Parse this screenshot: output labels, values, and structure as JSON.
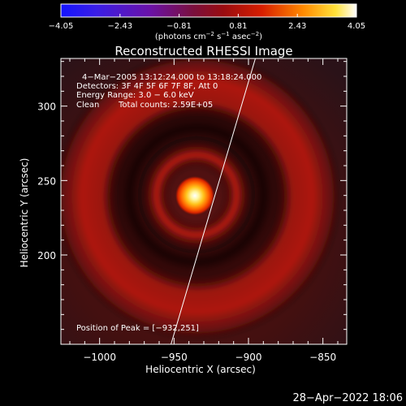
{
  "chart_data": {
    "type": "heatmap",
    "title": "Reconstructed RHESSI Image",
    "xlabel": "Heliocentric X (arcsec)",
    "ylabel": "Heliocentric Y (arcsec)",
    "xlim": [
      -1026,
      -834
    ],
    "ylim": [
      140,
      332
    ],
    "x_ticks": [
      -1000,
      -950,
      -900,
      -850
    ],
    "x_tick_labels": [
      "−1000",
      "−950",
      "−900",
      "−850"
    ],
    "y_ticks": [
      200,
      250,
      300
    ],
    "y_tick_labels": [
      "200",
      "250",
      "300"
    ],
    "colorbar": {
      "range": [
        -4.05,
        4.05
      ],
      "ticks": [
        -4.05,
        -2.43,
        -0.81,
        0.81,
        2.43,
        4.05
      ],
      "tick_labels": [
        "−4.05",
        "−2.43",
        "−0.81",
        "0.81",
        "2.43",
        "4.05"
      ],
      "units_prefix": "(photons cm",
      "units_exp1": "−2",
      "units_mid1": " s",
      "units_exp2": "−1",
      "units_mid2": " asec",
      "units_exp3": "−2",
      "units_suffix": ")"
    },
    "annotations": {
      "time_range": "4−Mar−2005 13:12:24.000 to 13:18:24.000",
      "detectors": "Detectors: 3F 4F 5F 6F 7F 8F, Att 0",
      "energy_range": "Energy Range: 3.0 − 6.0 keV",
      "method": "Clean",
      "total_counts": "Total counts: 2.59E+05",
      "peak_position": "Position of Peak = [−932,251]"
    },
    "peak": {
      "x": -932,
      "y": 251
    },
    "limb_line": [
      [
        -955,
        130
      ],
      [
        -893,
        340
      ]
    ],
    "timestamp": "28−Apr−2022 18:06"
  },
  "colors": {
    "background": "#000000",
    "frame": "#ffffff",
    "limb": "#ffffff"
  }
}
